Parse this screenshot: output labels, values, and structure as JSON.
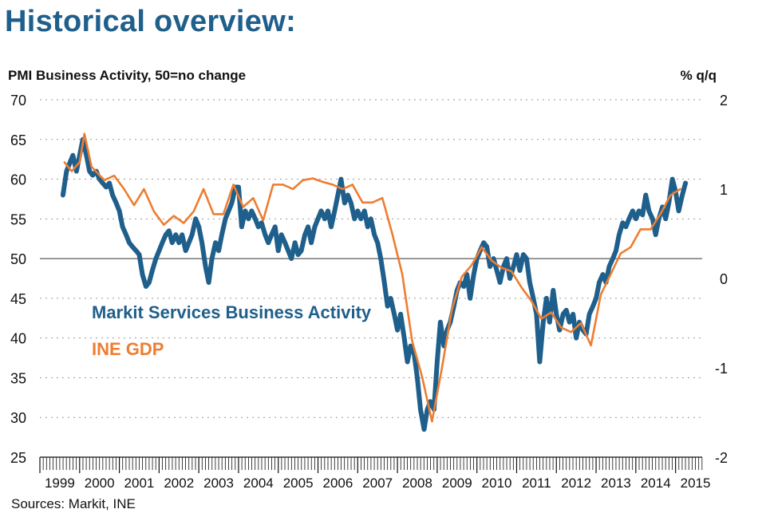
{
  "title": "Historical overview:",
  "source": "Sources: Markit, INE",
  "colors": {
    "pmi": "#1f5f8b",
    "gdp": "#ee7d31",
    "title": "#1f5f8b",
    "grid": "#9a9a9a"
  },
  "chart_data": {
    "type": "line",
    "ylabel_left": "PMI Business Activity, 50=no change",
    "ylabel_right": "% q/q",
    "ylim_left": [
      25,
      70
    ],
    "yticks_left": [
      "70",
      "65",
      "60",
      "55",
      "50",
      "45",
      "40",
      "35",
      "30",
      "25"
    ],
    "ylim_right": [
      -2,
      2
    ],
    "yticks_right": [
      "2",
      "1",
      "0",
      "-1",
      "-2"
    ],
    "xlim": [
      1999.0,
      2015.67
    ],
    "years": [
      "1999",
      "2000",
      "2001",
      "2002",
      "2003",
      "2004",
      "2005",
      "2006",
      "2007",
      "2008",
      "2009",
      "2010",
      "2011",
      "2012",
      "2013",
      "2014",
      "2015"
    ],
    "reference_line": 50,
    "grid": "horizontal dotted",
    "series": [
      {
        "name": "Markit Services Business Activity",
        "axis": "left",
        "points": [
          [
            1999.58,
            58
          ],
          [
            1999.67,
            61
          ],
          [
            1999.75,
            62
          ],
          [
            1999.83,
            63
          ],
          [
            1999.92,
            61
          ],
          [
            2000.0,
            63
          ],
          [
            2000.08,
            65
          ],
          [
            2000.17,
            63
          ],
          [
            2000.25,
            61
          ],
          [
            2000.33,
            60.5
          ],
          [
            2000.42,
            61
          ],
          [
            2000.5,
            60
          ],
          [
            2000.58,
            59.5
          ],
          [
            2000.67,
            59
          ],
          [
            2000.75,
            59.5
          ],
          [
            2000.83,
            58
          ],
          [
            2000.92,
            57
          ],
          [
            2001.0,
            56
          ],
          [
            2001.08,
            54
          ],
          [
            2001.17,
            53
          ],
          [
            2001.25,
            52
          ],
          [
            2001.33,
            51.5
          ],
          [
            2001.42,
            51
          ],
          [
            2001.5,
            50.5
          ],
          [
            2001.58,
            48
          ],
          [
            2001.67,
            46.5
          ],
          [
            2001.75,
            47
          ],
          [
            2001.83,
            48.5
          ],
          [
            2001.92,
            50
          ],
          [
            2002.0,
            51
          ],
          [
            2002.08,
            52
          ],
          [
            2002.17,
            53
          ],
          [
            2002.25,
            53.5
          ],
          [
            2002.33,
            52
          ],
          [
            2002.42,
            53
          ],
          [
            2002.5,
            52
          ],
          [
            2002.58,
            53
          ],
          [
            2002.67,
            51
          ],
          [
            2002.75,
            52
          ],
          [
            2002.83,
            53
          ],
          [
            2002.92,
            55
          ],
          [
            2003.0,
            54
          ],
          [
            2003.08,
            52
          ],
          [
            2003.17,
            49
          ],
          [
            2003.25,
            47
          ],
          [
            2003.33,
            50
          ],
          [
            2003.42,
            52
          ],
          [
            2003.5,
            51
          ],
          [
            2003.58,
            53
          ],
          [
            2003.67,
            55
          ],
          [
            2003.75,
            56
          ],
          [
            2003.83,
            57
          ],
          [
            2003.92,
            59
          ],
          [
            2004.0,
            59
          ],
          [
            2004.08,
            54
          ],
          [
            2004.17,
            56
          ],
          [
            2004.25,
            55
          ],
          [
            2004.33,
            56
          ],
          [
            2004.42,
            55
          ],
          [
            2004.5,
            54
          ],
          [
            2004.58,
            54.5
          ],
          [
            2004.67,
            53
          ],
          [
            2004.75,
            52
          ],
          [
            2004.83,
            53
          ],
          [
            2004.92,
            54
          ],
          [
            2005.0,
            51
          ],
          [
            2005.08,
            53
          ],
          [
            2005.17,
            52
          ],
          [
            2005.25,
            51
          ],
          [
            2005.33,
            50
          ],
          [
            2005.42,
            52
          ],
          [
            2005.5,
            50.5
          ],
          [
            2005.58,
            51
          ],
          [
            2005.67,
            53
          ],
          [
            2005.75,
            54
          ],
          [
            2005.83,
            52
          ],
          [
            2005.92,
            54
          ],
          [
            2006.0,
            55
          ],
          [
            2006.08,
            56
          ],
          [
            2006.17,
            55
          ],
          [
            2006.25,
            56
          ],
          [
            2006.33,
            54
          ],
          [
            2006.42,
            56
          ],
          [
            2006.5,
            58
          ],
          [
            2006.58,
            60
          ],
          [
            2006.67,
            57
          ],
          [
            2006.75,
            58
          ],
          [
            2006.83,
            57
          ],
          [
            2006.92,
            55
          ],
          [
            2007.0,
            56
          ],
          [
            2007.08,
            55
          ],
          [
            2007.17,
            56
          ],
          [
            2007.25,
            54
          ],
          [
            2007.33,
            55
          ],
          [
            2007.42,
            53
          ],
          [
            2007.5,
            52
          ],
          [
            2007.58,
            50
          ],
          [
            2007.67,
            47
          ],
          [
            2007.75,
            44
          ],
          [
            2007.83,
            45
          ],
          [
            2007.92,
            43
          ],
          [
            2008.0,
            41
          ],
          [
            2008.08,
            43
          ],
          [
            2008.17,
            40
          ],
          [
            2008.25,
            37
          ],
          [
            2008.33,
            39
          ],
          [
            2008.42,
            38
          ],
          [
            2008.5,
            35
          ],
          [
            2008.58,
            31
          ],
          [
            2008.67,
            28.5
          ],
          [
            2008.75,
            31
          ],
          [
            2008.83,
            32
          ],
          [
            2008.92,
            31
          ],
          [
            2009.0,
            37
          ],
          [
            2009.08,
            42
          ],
          [
            2009.17,
            39
          ],
          [
            2009.25,
            41
          ],
          [
            2009.33,
            42
          ],
          [
            2009.42,
            44
          ],
          [
            2009.5,
            46
          ],
          [
            2009.58,
            47
          ],
          [
            2009.67,
            46.5
          ],
          [
            2009.75,
            48
          ],
          [
            2009.83,
            45
          ],
          [
            2009.92,
            48
          ],
          [
            2010.0,
            50
          ],
          [
            2010.08,
            51
          ],
          [
            2010.17,
            52
          ],
          [
            2010.25,
            51.5
          ],
          [
            2010.33,
            49
          ],
          [
            2010.42,
            50
          ],
          [
            2010.5,
            48.5
          ],
          [
            2010.58,
            47
          ],
          [
            2010.67,
            49
          ],
          [
            2010.75,
            50
          ],
          [
            2010.83,
            47.5
          ],
          [
            2010.92,
            49
          ],
          [
            2011.0,
            50.5
          ],
          [
            2011.08,
            48.5
          ],
          [
            2011.17,
            50.5
          ],
          [
            2011.25,
            50
          ],
          [
            2011.33,
            47
          ],
          [
            2011.42,
            45
          ],
          [
            2011.5,
            43
          ],
          [
            2011.58,
            37
          ],
          [
            2011.67,
            42
          ],
          [
            2011.75,
            45
          ],
          [
            2011.83,
            42
          ],
          [
            2011.92,
            46
          ],
          [
            2012.0,
            43
          ],
          [
            2012.08,
            41
          ],
          [
            2012.17,
            43
          ],
          [
            2012.25,
            43.5
          ],
          [
            2012.33,
            42
          ],
          [
            2012.42,
            43
          ],
          [
            2012.5,
            40
          ],
          [
            2012.58,
            42
          ],
          [
            2012.67,
            41
          ],
          [
            2012.75,
            40.5
          ],
          [
            2012.83,
            43
          ],
          [
            2012.92,
            44
          ],
          [
            2013.0,
            45
          ],
          [
            2013.08,
            47
          ],
          [
            2013.17,
            48
          ],
          [
            2013.25,
            47
          ],
          [
            2013.33,
            49
          ],
          [
            2013.42,
            50
          ],
          [
            2013.5,
            51
          ],
          [
            2013.58,
            53
          ],
          [
            2013.67,
            54.5
          ],
          [
            2013.75,
            54
          ],
          [
            2013.83,
            55
          ],
          [
            2013.92,
            56
          ],
          [
            2014.0,
            55
          ],
          [
            2014.08,
            56
          ],
          [
            2014.17,
            55.5
          ],
          [
            2014.25,
            58
          ],
          [
            2014.33,
            56
          ],
          [
            2014.42,
            55
          ],
          [
            2014.5,
            53
          ],
          [
            2014.58,
            55
          ],
          [
            2014.67,
            56.5
          ],
          [
            2014.75,
            55
          ],
          [
            2014.83,
            57
          ],
          [
            2014.92,
            60
          ],
          [
            2015.0,
            58.5
          ],
          [
            2015.08,
            56
          ],
          [
            2015.17,
            58
          ],
          [
            2015.25,
            59.5
          ]
        ]
      },
      {
        "name": "INE GDP",
        "axis": "right",
        "points": [
          [
            1999.62,
            1.3
          ],
          [
            1999.8,
            1.2
          ],
          [
            2000.0,
            1.3
          ],
          [
            2000.12,
            1.62
          ],
          [
            2000.3,
            1.25
          ],
          [
            2000.62,
            1.1
          ],
          [
            2000.87,
            1.15
          ],
          [
            2001.12,
            1.0
          ],
          [
            2001.37,
            0.82
          ],
          [
            2001.62,
            1.0
          ],
          [
            2001.87,
            0.75
          ],
          [
            2002.12,
            0.6
          ],
          [
            2002.37,
            0.7
          ],
          [
            2002.62,
            0.62
          ],
          [
            2002.87,
            0.75
          ],
          [
            2003.12,
            1.0
          ],
          [
            2003.37,
            0.72
          ],
          [
            2003.62,
            0.72
          ],
          [
            2003.87,
            1.05
          ],
          [
            2004.12,
            0.8
          ],
          [
            2004.37,
            0.9
          ],
          [
            2004.62,
            0.65
          ],
          [
            2004.87,
            1.05
          ],
          [
            2005.12,
            1.05
          ],
          [
            2005.37,
            1.0
          ],
          [
            2005.62,
            1.1
          ],
          [
            2005.87,
            1.12
          ],
          [
            2006.12,
            1.08
          ],
          [
            2006.37,
            1.05
          ],
          [
            2006.62,
            1.0
          ],
          [
            2006.87,
            1.05
          ],
          [
            2007.12,
            0.85
          ],
          [
            2007.37,
            0.85
          ],
          [
            2007.62,
            0.9
          ],
          [
            2007.87,
            0.5
          ],
          [
            2008.12,
            0.05
          ],
          [
            2008.37,
            -0.7
          ],
          [
            2008.62,
            -1.1
          ],
          [
            2008.87,
            -1.6
          ],
          [
            2009.12,
            -1.0
          ],
          [
            2009.37,
            -0.35
          ],
          [
            2009.62,
            0.02
          ],
          [
            2009.87,
            0.15
          ],
          [
            2010.12,
            0.35
          ],
          [
            2010.37,
            0.2
          ],
          [
            2010.62,
            0.12
          ],
          [
            2010.87,
            0.08
          ],
          [
            2011.12,
            -0.1
          ],
          [
            2011.37,
            -0.25
          ],
          [
            2011.62,
            -0.45
          ],
          [
            2011.87,
            -0.38
          ],
          [
            2012.12,
            -0.55
          ],
          [
            2012.37,
            -0.6
          ],
          [
            2012.62,
            -0.5
          ],
          [
            2012.87,
            -0.75
          ],
          [
            2013.12,
            -0.18
          ],
          [
            2013.37,
            0.05
          ],
          [
            2013.62,
            0.28
          ],
          [
            2013.87,
            0.35
          ],
          [
            2014.12,
            0.55
          ],
          [
            2014.37,
            0.55
          ],
          [
            2014.62,
            0.72
          ],
          [
            2014.87,
            0.93
          ],
          [
            2015.12,
            1.0
          ]
        ]
      }
    ],
    "annotations": [
      "Markit Services Business Activity",
      "INE GDP"
    ]
  }
}
